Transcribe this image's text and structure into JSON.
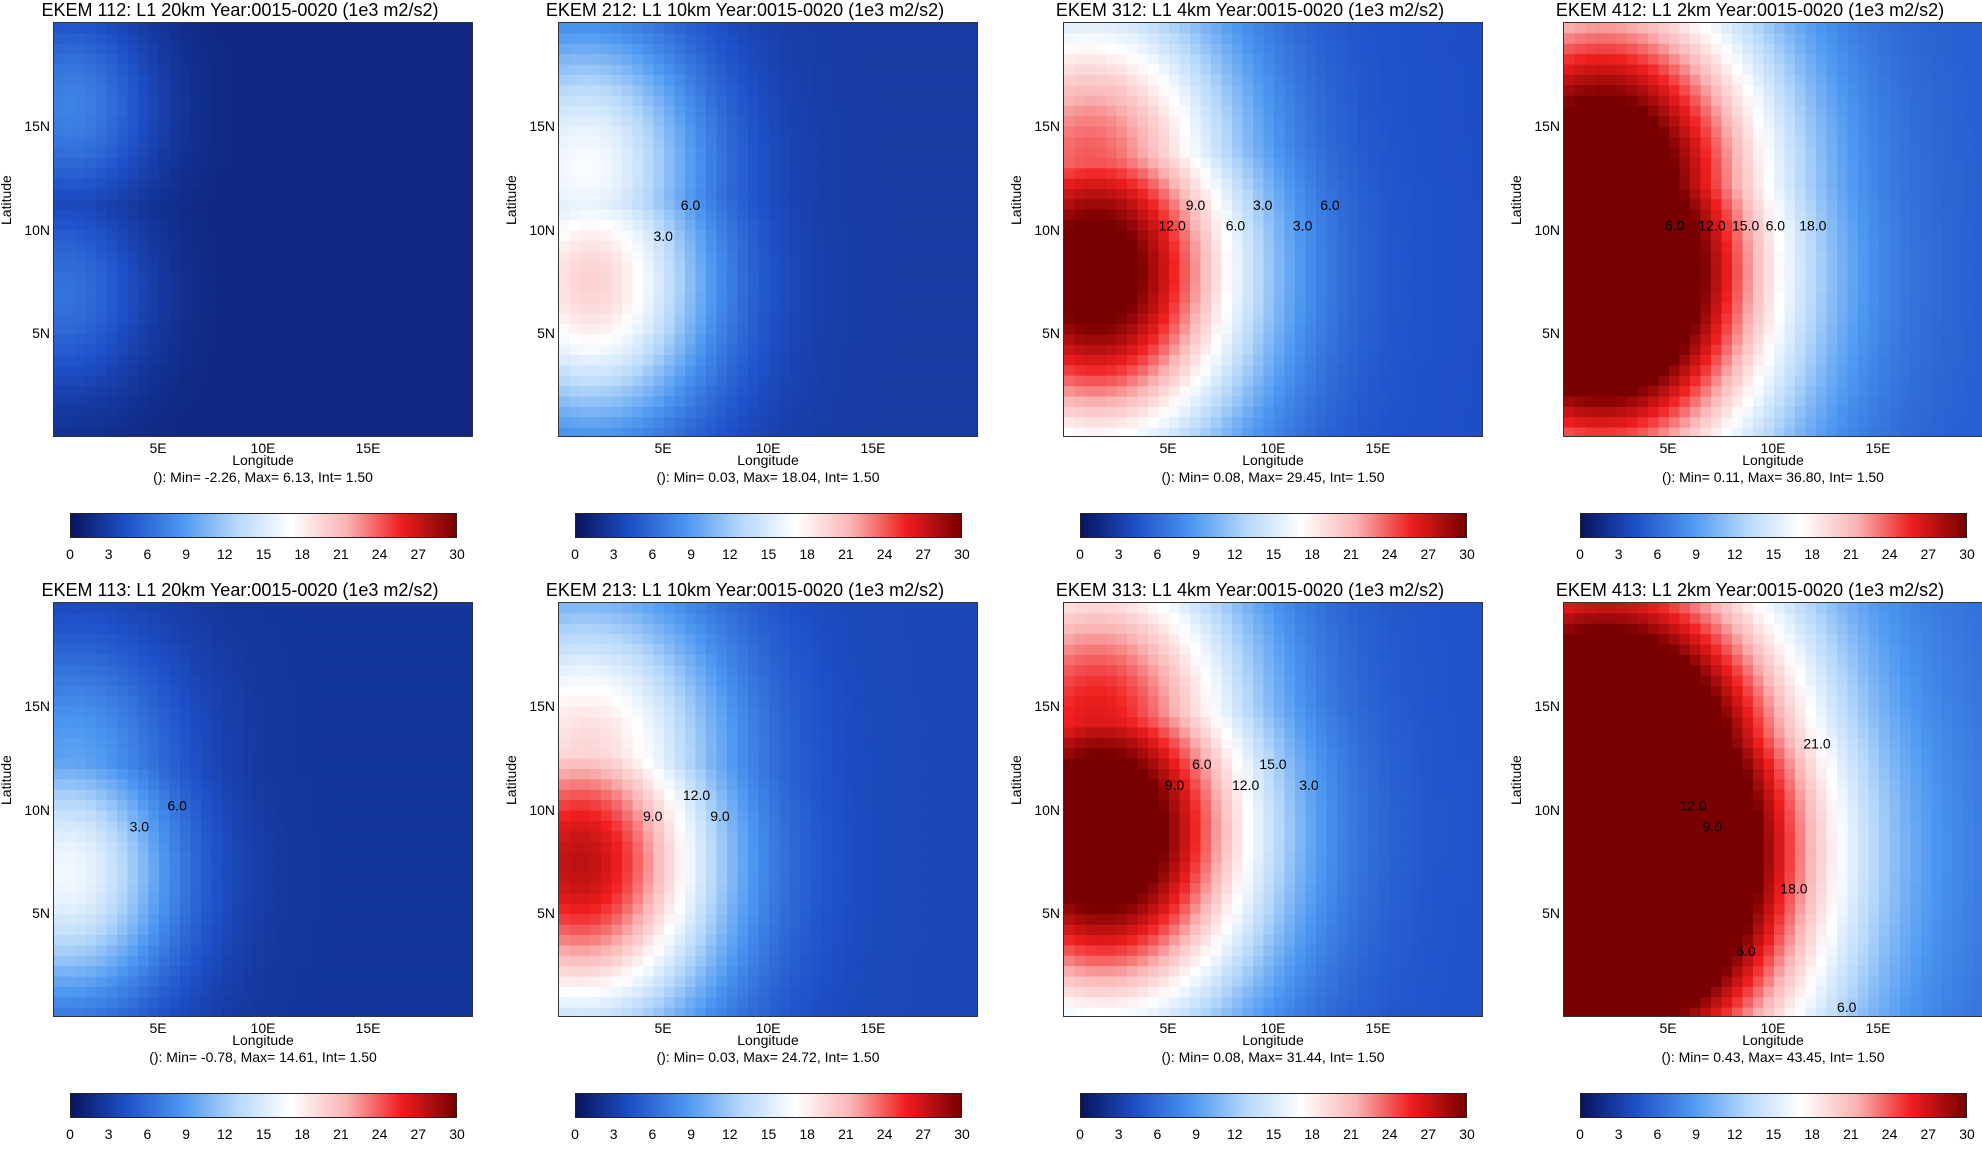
{
  "common": {
    "xlabel": "Longitude",
    "ylabel": "Latitude",
    "xticks": [
      "5E",
      "10E",
      "15E"
    ],
    "yticks": [
      "5N",
      "10N",
      "15N"
    ],
    "colorbar_ticks": [
      "0",
      "3",
      "6",
      "9",
      "12",
      "15",
      "18",
      "21",
      "24",
      "27",
      "30"
    ],
    "colorscale": [
      "#08145f",
      "#1e50c8",
      "#4b96f0",
      "#b4d7fa",
      "#ffffff",
      "#fab4b4",
      "#f01e1e",
      "#780000"
    ]
  },
  "chart_data": [
    {
      "type": "heatmap",
      "title": "EKEM 112: L1 20km Year:0015-0020 (1e3 m2/s2)",
      "stats": "(): Min= -2.26, Max= 6.13, Int= 1.50",
      "xlim": [
        0,
        20
      ],
      "ylim": [
        0,
        20
      ],
      "max": 6.13,
      "hotspots": [
        {
          "lon": 0.5,
          "lat": 7,
          "value": 5
        },
        {
          "lon": 0.8,
          "lat": 16,
          "value": 6
        }
      ],
      "contour_labels": []
    },
    {
      "type": "heatmap",
      "title": "EKEM 212: L1 10km Year:0015-0020 (1e3 m2/s2)",
      "stats": "(): Min= 0.03, Max= 18.04, Int= 1.50",
      "xlim": [
        0,
        20
      ],
      "ylim": [
        0,
        20
      ],
      "max": 18.04,
      "hotspots": [
        {
          "lon": 1.5,
          "lat": 7.5,
          "value": 17
        },
        {
          "lon": 1.2,
          "lat": 13,
          "value": 14
        }
      ],
      "contour_labels": [
        "3.0",
        "6.0"
      ]
    },
    {
      "type": "heatmap",
      "title": "EKEM 312: L1 4km Year:0015-0020 (1e3 m2/s2)",
      "stats": "(): Min= 0.08, Max= 29.45, Int= 1.50",
      "xlim": [
        0,
        20
      ],
      "ylim": [
        0,
        20
      ],
      "max": 29.45,
      "hotspots": [
        {
          "lon": 1.5,
          "lat": 8,
          "value": 28
        },
        {
          "lon": 1.2,
          "lat": 13,
          "value": 20
        }
      ],
      "contour_labels": [
        "12.0",
        "9.0",
        "6.0",
        "3.0",
        "3.0",
        "6.0"
      ]
    },
    {
      "type": "heatmap",
      "title": "EKEM 412: L1 2km Year:0015-0020 (1e3 m2/s2)",
      "stats": "(): Min= 0.11, Max= 36.80, Int= 1.50",
      "xlim": [
        0,
        20
      ],
      "ylim": [
        0,
        20
      ],
      "max": 36.8,
      "hotspots": [
        {
          "lon": 1.8,
          "lat": 8,
          "value": 35
        },
        {
          "lon": 1.8,
          "lat": 12,
          "value": 30
        }
      ],
      "contour_labels": [
        "6.0",
        "12.0",
        "15.0",
        "6.0",
        "18.0"
      ]
    },
    {
      "type": "heatmap",
      "title": "EKEM 113: L1 20km Year:0015-0020 (1e3 m2/s2)",
      "stats": "(): Min= -0.78, Max= 14.61, Int= 1.50",
      "xlim": [
        0,
        20
      ],
      "ylim": [
        0,
        20
      ],
      "max": 14.61,
      "hotspots": [
        {
          "lon": 0.6,
          "lat": 7,
          "value": 14
        },
        {
          "lon": 0.8,
          "lat": 12,
          "value": 7
        }
      ],
      "contour_labels": [
        "3.0",
        "6.0"
      ]
    },
    {
      "type": "heatmap",
      "title": "EKEM 213: L1 10km Year:0015-0020 (1e3 m2/s2)",
      "stats": "(): Min= 0.03, Max= 24.72, Int= 1.50",
      "xlim": [
        0,
        20
      ],
      "ylim": [
        0,
        20
      ],
      "max": 24.72,
      "hotspots": [
        {
          "lon": 1.0,
          "lat": 7.5,
          "value": 24
        },
        {
          "lon": 1.3,
          "lat": 12.5,
          "value": 16
        }
      ],
      "contour_labels": [
        "9.0",
        "12.0",
        "9.0"
      ]
    },
    {
      "type": "heatmap",
      "title": "EKEM 313: L1 4km Year:0015-0020 (1e3 m2/s2)",
      "stats": "(): Min= 0.08, Max= 31.44, Int= 1.50",
      "xlim": [
        0,
        20
      ],
      "ylim": [
        0,
        20
      ],
      "max": 31.44,
      "hotspots": [
        {
          "lon": 1.8,
          "lat": 9,
          "value": 30
        },
        {
          "lon": 1.5,
          "lat": 14,
          "value": 22
        }
      ],
      "contour_labels": [
        "9.0",
        "6.0",
        "12.0",
        "15.0",
        "3.0"
      ]
    },
    {
      "type": "heatmap",
      "title": "EKEM 413: L1 2km Year:0015-0020 (1e3 m2/s2)",
      "stats": "(): Min= 0.43, Max= 43.45, Int= 1.50",
      "xlim": [
        0,
        20
      ],
      "ylim": [
        0,
        20
      ],
      "max": 43.45,
      "hotspots": [
        {
          "lon": 2.5,
          "lat": 8,
          "value": 42
        },
        {
          "lon": 2,
          "lat": 11,
          "value": 38
        },
        {
          "lon": 2,
          "lat": 1,
          "value": 28
        }
      ],
      "contour_labels": [
        "12.0",
        "9.0",
        "6.0",
        "18.0",
        "21.0",
        "6.0"
      ]
    }
  ]
}
